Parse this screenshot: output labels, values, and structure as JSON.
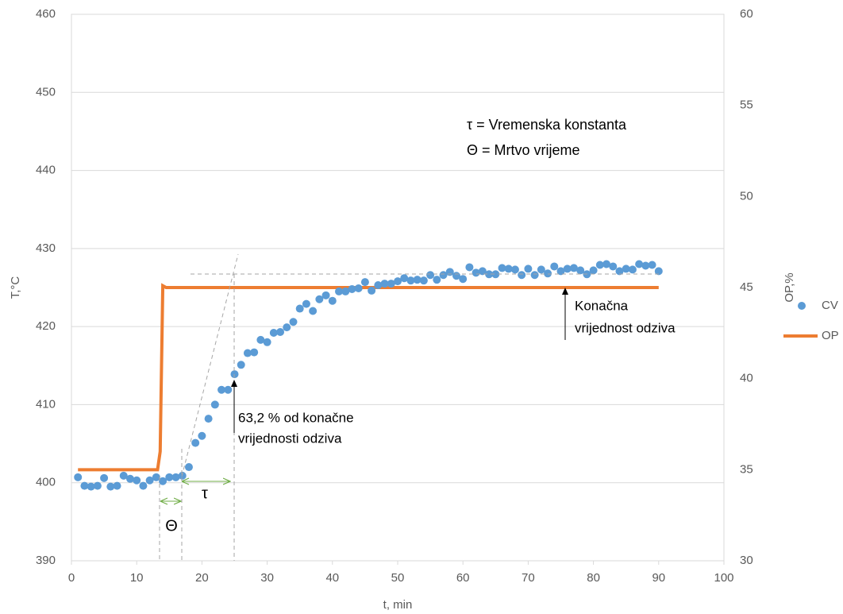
{
  "chart_data": {
    "type": "scatter_line",
    "xlabel": "t, min",
    "ylabel": "T,°C",
    "y2label": "OP,%",
    "xlim": [
      0,
      100
    ],
    "xticks": [
      0,
      10,
      20,
      30,
      40,
      50,
      60,
      70,
      80,
      90,
      100
    ],
    "ylim": [
      390,
      460
    ],
    "yticks": [
      390,
      400,
      410,
      420,
      430,
      440,
      450,
      460
    ],
    "y2lim": [
      30,
      60
    ],
    "y2ticks": [
      30,
      35,
      40,
      45,
      50,
      55,
      60
    ],
    "grid": true,
    "legend": "right",
    "series": [
      {
        "name": "CV",
        "type": "scatter",
        "color": "#5b9bd5",
        "x": [
          1,
          2,
          3,
          4,
          5,
          6,
          7,
          8,
          9,
          10,
          11,
          12,
          13,
          14,
          15,
          16,
          17,
          18,
          19,
          20,
          21,
          22,
          23,
          24,
          25,
          26,
          27,
          28,
          29,
          30,
          31,
          32,
          33,
          34,
          35,
          36,
          37,
          38,
          39,
          40,
          41,
          42,
          43,
          44,
          45,
          46,
          47,
          48,
          49,
          50,
          51,
          52,
          53,
          54,
          55,
          56,
          57,
          58,
          59,
          60,
          61,
          62,
          63,
          64,
          65,
          66,
          67,
          68,
          69,
          70,
          71,
          72,
          73,
          74,
          75,
          76,
          77,
          78,
          79,
          80,
          81,
          82,
          83,
          84,
          85,
          86,
          87,
          88,
          89,
          90
        ],
        "values": [
          400.7,
          399.6,
          399.5,
          399.6,
          400.6,
          399.5,
          399.6,
          400.9,
          400.5,
          400.3,
          399.6,
          400.3,
          400.7,
          400.2,
          400.7,
          400.7,
          400.9,
          402,
          405.1,
          406,
          408.2,
          410,
          411.9,
          411.9,
          413.9,
          415.1,
          416.6,
          416.7,
          418.3,
          418,
          419.2,
          419.3,
          419.9,
          420.6,
          422.3,
          422.9,
          422,
          423.5,
          424,
          423.3,
          424.5,
          424.5,
          424.8,
          424.9,
          425.7,
          424.6,
          425.3,
          425.5,
          425.5,
          425.8,
          426.2,
          425.9,
          426,
          425.9,
          426.6,
          426,
          426.6,
          427,
          426.5,
          426.1,
          427.6,
          426.9,
          427.1,
          426.7,
          426.7,
          427.5,
          427.4,
          427.3,
          426.6,
          427.4,
          426.6,
          427.3,
          426.8,
          427.7,
          427.1,
          427.4,
          427.5,
          427.2,
          426.7,
          427.2,
          427.9,
          428,
          427.7,
          427.1,
          427.4,
          427.3,
          428,
          427.8,
          427.9,
          427.1
        ]
      },
      {
        "name": "OP",
        "type": "line",
        "axis": "y2",
        "color": "#ed7d31",
        "x": [
          1,
          13.2,
          13.6,
          14,
          14.5,
          90
        ],
        "values": [
          35,
          35,
          36,
          45.1,
          45,
          45
        ]
      }
    ],
    "annotations": [
      "τ = Vremenska konstanta",
      "Θ = Mrtvo vrijeme",
      "Konačna",
      "vrijednost odziva",
      "63,2 % od konačne",
      "vrijednosti odziva",
      "Θ",
      "τ"
    ]
  }
}
